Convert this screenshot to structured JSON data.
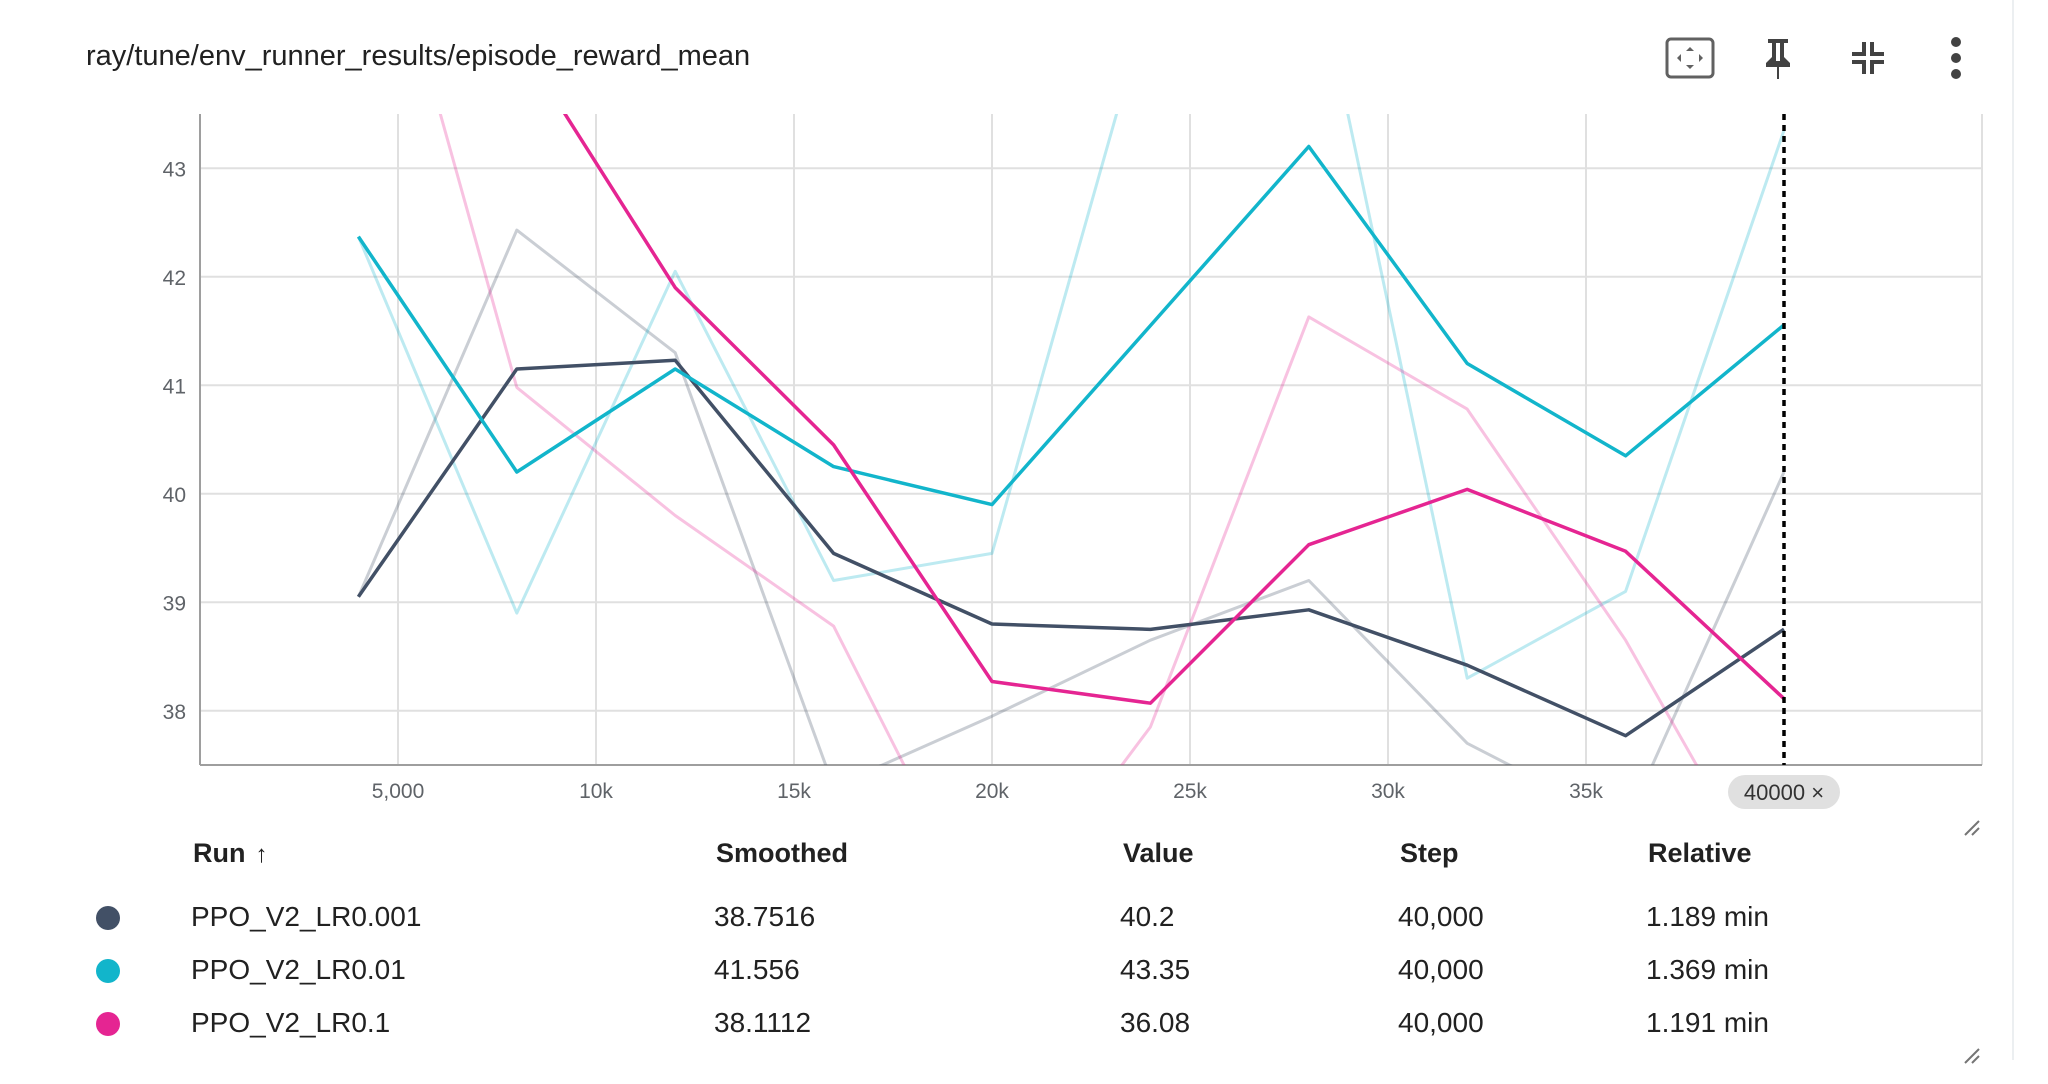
{
  "title": "ray/tune/env_runner_results/episode_reward_mean",
  "toolbar": {
    "icons": [
      "fit-domain-icon",
      "pin-icon",
      "collapse-icon",
      "more-vert-icon"
    ]
  },
  "colors": {
    "PPO_V2_LR0.001": "#425066",
    "PPO_V2_LR0.01": "#12b5cb",
    "PPO_V2_LR0.1": "#e52592",
    "grid": "#e0e0e0"
  },
  "chart_data": {
    "type": "line",
    "ylim": [
      37.5,
      43.5
    ],
    "xlim": [
      0,
      45000
    ],
    "x_ticks": [
      5000,
      10000,
      15000,
      20000,
      25000,
      30000,
      35000
    ],
    "x_tick_labels": [
      "5,000",
      "10k",
      "15k",
      "20k",
      "25k",
      "30k",
      "35k"
    ],
    "y_ticks": [
      38,
      39,
      40,
      41,
      42,
      43
    ],
    "y_tick_labels": [
      "38",
      "39",
      "40",
      "41",
      "42",
      "43"
    ],
    "cursor_step": 40000,
    "cursor_label": "40000 ×",
    "x": [
      4000,
      8000,
      12000,
      16000,
      20000,
      24000,
      28000,
      32000,
      36000,
      40000
    ],
    "series": [
      {
        "name": "PPO_V2_LR0.001",
        "color": "#425066",
        "smoothed": [
          39.05,
          41.15,
          41.23,
          39.45,
          38.8,
          38.75,
          38.93,
          38.42,
          37.77,
          38.7516
        ],
        "raw": [
          39.05,
          42.43,
          41.3,
          37.3,
          37.95,
          38.65,
          39.2,
          37.7,
          36.95,
          40.2
        ]
      },
      {
        "name": "PPO_V2_LR0.01",
        "color": "#12b5cb",
        "smoothed": [
          42.37,
          40.2,
          41.15,
          40.25,
          39.9,
          41.55,
          43.2,
          41.2,
          40.35,
          41.556
        ],
        "raw": [
          42.37,
          38.9,
          42.05,
          39.2,
          39.45,
          44.6,
          45.2,
          38.3,
          39.1,
          43.35
        ]
      },
      {
        "name": "PPO_V2_LR0.1",
        "color": "#e52592",
        "smoothed": [
          46.2,
          44.2,
          41.9,
          40.45,
          38.27,
          38.07,
          39.53,
          40.04,
          39.47,
          38.1112
        ],
        "raw": [
          46.2,
          40.98,
          39.8,
          38.78,
          35.9,
          37.85,
          41.63,
          40.78,
          38.65,
          36.08
        ]
      }
    ]
  },
  "table": {
    "headers": {
      "run": "Run",
      "sort_arrow": "↑",
      "smoothed": "Smoothed",
      "value": "Value",
      "step": "Step",
      "relative": "Relative"
    },
    "rows": [
      {
        "run": "PPO_V2_LR0.001",
        "smoothed": "38.7516",
        "value": "40.2",
        "step": "40,000",
        "relative": "1.189 min",
        "color": "#425066"
      },
      {
        "run": "PPO_V2_LR0.01",
        "smoothed": "41.556",
        "value": "43.35",
        "step": "40,000",
        "relative": "1.369 min",
        "color": "#12b5cb"
      },
      {
        "run": "PPO_V2_LR0.1",
        "smoothed": "38.1112",
        "value": "36.08",
        "step": "40,000",
        "relative": "1.191 min",
        "color": "#e52592"
      }
    ]
  }
}
